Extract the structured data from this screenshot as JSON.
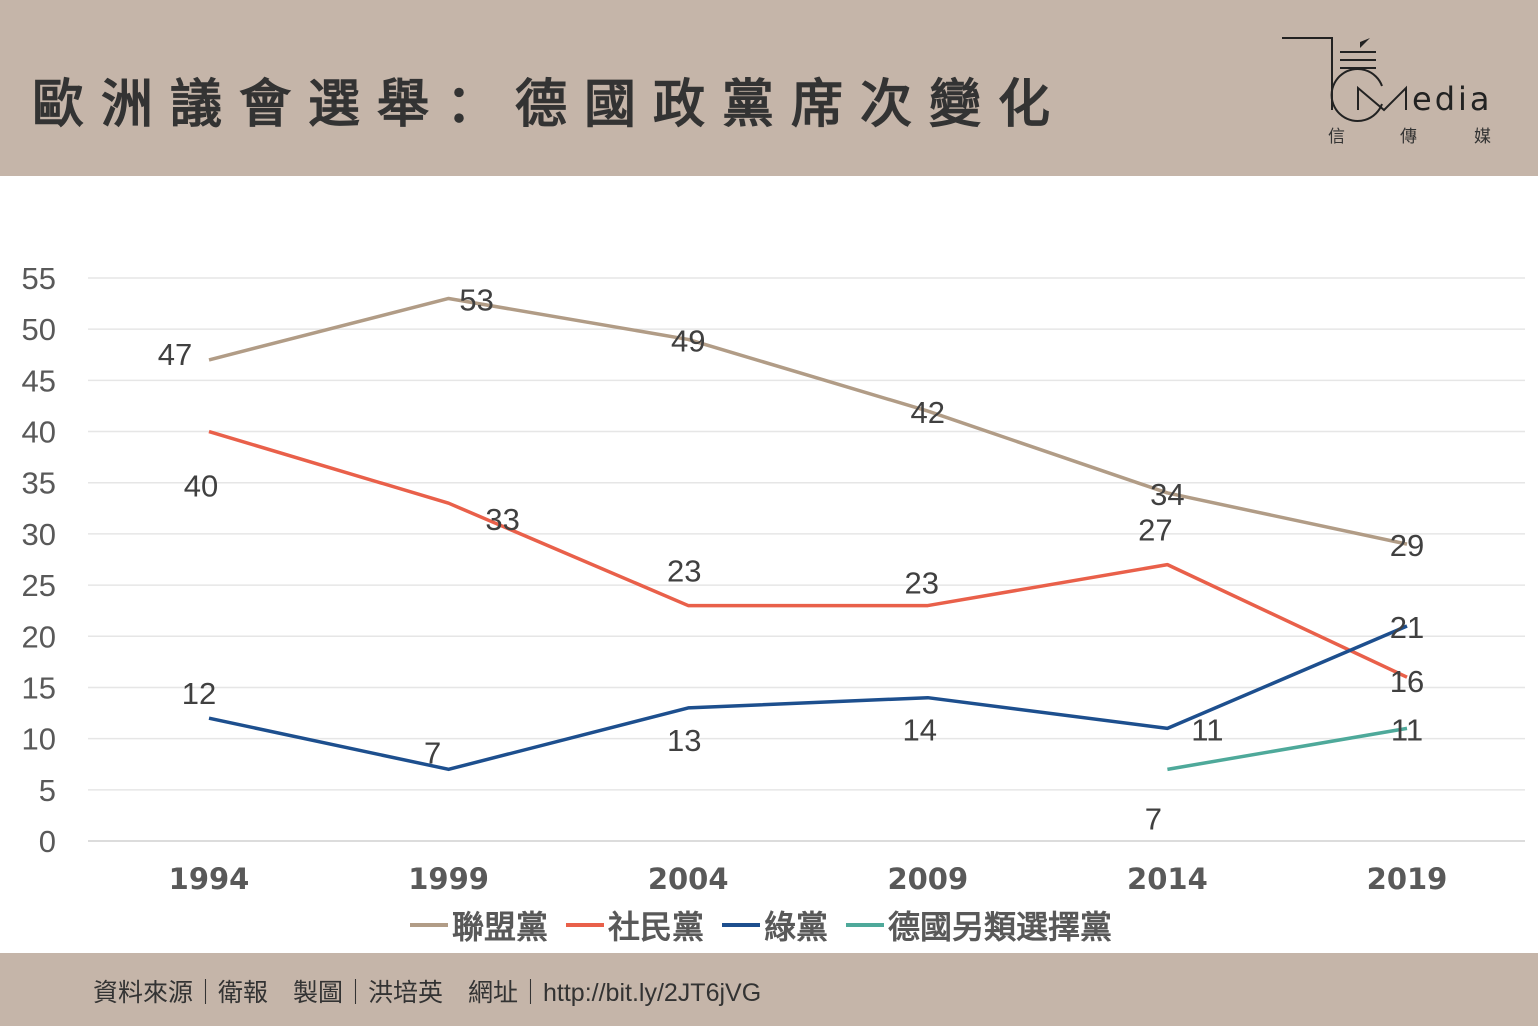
{
  "header": {
    "title": "歐洲議會選舉：德國政黨席次變化"
  },
  "logo": {
    "text": "Media",
    "subtitle": "信 傳 媒"
  },
  "footer": {
    "text": "資料來源｜衛報　製圖｜洪培英　網址｜http://bit.ly/2JT6jVG"
  },
  "chart_data": {
    "type": "line",
    "title": "",
    "xlabel": "",
    "ylabel": "",
    "categories": [
      "1994",
      "1999",
      "2004",
      "2009",
      "2014",
      "2019"
    ],
    "ylim": [
      0,
      55
    ],
    "yticks": [
      0,
      5,
      10,
      15,
      20,
      25,
      30,
      35,
      40,
      45,
      50,
      55
    ],
    "grid": true,
    "legend_position": "bottom",
    "series": [
      {
        "name": "聯盟黨",
        "color": "#b19c86",
        "values": [
          47,
          53,
          49,
          42,
          34,
          29
        ]
      },
      {
        "name": "社民黨",
        "color": "#e9604a",
        "values": [
          40,
          33,
          23,
          23,
          27,
          16
        ]
      },
      {
        "name": "綠黨",
        "color": "#1d4f8e",
        "values": [
          12,
          7,
          13,
          14,
          11,
          21
        ]
      },
      {
        "name": "德國另類選擇黨",
        "color": "#4ea99a",
        "values": [
          null,
          null,
          null,
          null,
          7,
          11
        ]
      }
    ]
  }
}
